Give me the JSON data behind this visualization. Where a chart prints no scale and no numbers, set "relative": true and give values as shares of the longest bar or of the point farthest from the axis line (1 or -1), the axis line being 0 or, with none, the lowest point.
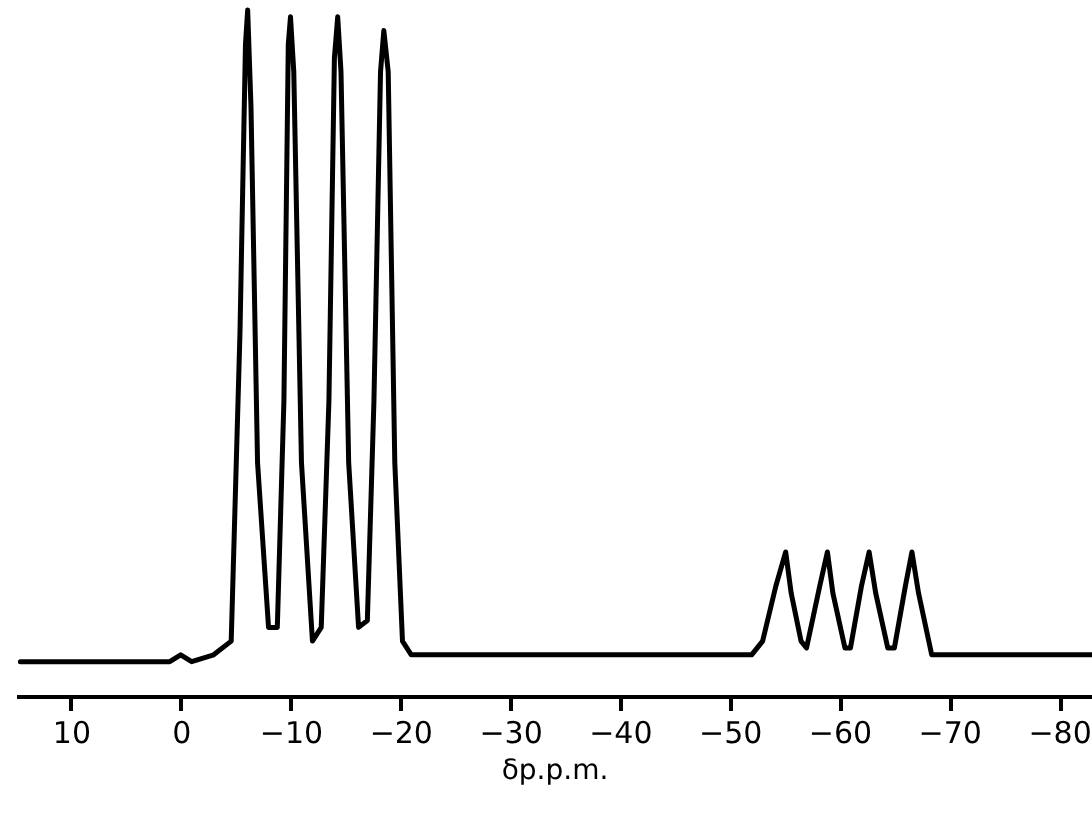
{
  "chart_data": {
    "type": "line",
    "xlabel": "δp.p.m.",
    "relative": true,
    "xlim": [
      15,
      -83
    ],
    "xticks": [
      10,
      0,
      -10,
      -20,
      -30,
      -40,
      -50,
      -60,
      -70,
      -80
    ],
    "grid": false,
    "marker": "none",
    "line_style": "solid",
    "series": [
      {
        "color": "#000000",
        "x": [
          14.6,
          5,
          1,
          0,
          -1,
          -3,
          -4.6,
          -5.4,
          -5.9,
          -6.1,
          -6.4,
          -7,
          -8,
          -8.8,
          -9.4,
          -9.8,
          -10.0,
          -10.3,
          -11,
          -12,
          -12.8,
          -13.5,
          -14.0,
          -14.3,
          -14.6,
          -15.3,
          -16.2,
          -17,
          -17.6,
          -18.2,
          -18.5,
          -18.9,
          -19.5,
          -20.2,
          -21,
          -30,
          -45,
          -52,
          -53,
          -54.2,
          -55.1,
          -55.6,
          -56.5,
          -57,
          -58.2,
          -58.9,
          -59.4,
          -60.5,
          -61,
          -62.0,
          -62.7,
          -63.3,
          -64.4,
          -65,
          -66,
          -66.6,
          -67.2,
          -68.4,
          -70,
          -83
        ],
        "values": [
          0.05,
          0.05,
          0.05,
          0.06,
          0.05,
          0.06,
          0.08,
          0.53,
          0.95,
          1.0,
          0.86,
          0.34,
          0.1,
          0.1,
          0.43,
          0.95,
          0.99,
          0.91,
          0.34,
          0.08,
          0.1,
          0.43,
          0.93,
          0.99,
          0.91,
          0.34,
          0.1,
          0.11,
          0.43,
          0.91,
          0.97,
          0.91,
          0.34,
          0.08,
          0.06,
          0.06,
          0.06,
          0.06,
          0.08,
          0.16,
          0.21,
          0.15,
          0.08,
          0.07,
          0.16,
          0.21,
          0.15,
          0.07,
          0.07,
          0.16,
          0.21,
          0.15,
          0.07,
          0.07,
          0.16,
          0.21,
          0.15,
          0.06,
          0.06,
          0.06
        ]
      }
    ]
  }
}
